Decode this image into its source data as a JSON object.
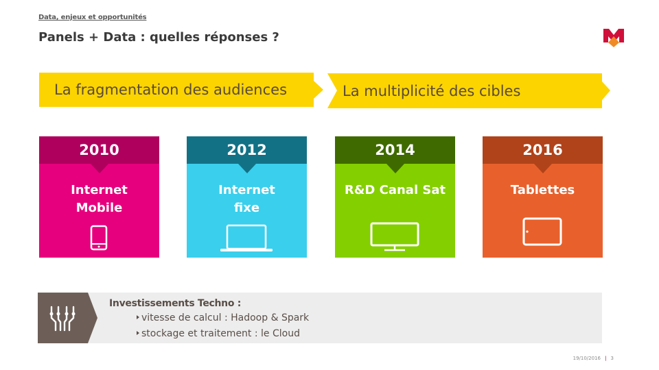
{
  "header": {
    "breadcrumb": "Data, enjeux et opportunités",
    "title": "Panels + Data : quelles réponses ?"
  },
  "banners": [
    {
      "label": "La fragmentation des audiences"
    },
    {
      "label": "La multiplicité des cibles"
    }
  ],
  "cards": [
    {
      "year": "2010",
      "label": "Internet\nMobile",
      "icon": "smartphone-icon",
      "color": "#e6007e",
      "accent": "#b0005e"
    },
    {
      "year": "2012",
      "label": "Internet\nfixe",
      "icon": "laptop-icon",
      "color": "#3acfec",
      "accent": "#137186"
    },
    {
      "year": "2014",
      "label": "R&D Canal Sat",
      "icon": "tv-icon",
      "color": "#84cf00",
      "accent": "#3f6a00"
    },
    {
      "year": "2016",
      "label": "Tablettes",
      "icon": "tablet-icon",
      "color": "#e8612c",
      "accent": "#b0431a"
    }
  ],
  "investments": {
    "heading": "Investissements Techno :",
    "icon": "circuit-icon",
    "bullets": [
      "vitesse de calcul : Hadoop & Spark",
      "stockage et traitement : le Cloud"
    ]
  },
  "footer": {
    "date": "19/10/2016",
    "page": "3"
  }
}
